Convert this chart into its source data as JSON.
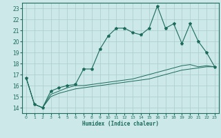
{
  "xlabel": "Humidex (Indice chaleur)",
  "ylabel": "",
  "xlim": [
    -0.5,
    23.5
  ],
  "ylim": [
    13.5,
    23.5
  ],
  "yticks": [
    14,
    15,
    16,
    17,
    18,
    19,
    20,
    21,
    22,
    23
  ],
  "xticks": [
    0,
    1,
    2,
    3,
    4,
    5,
    6,
    7,
    8,
    9,
    10,
    11,
    12,
    13,
    14,
    15,
    16,
    17,
    18,
    19,
    20,
    21,
    22,
    23
  ],
  "bg_color": "#cce8e8",
  "grid_color": "#aacccc",
  "line_color": "#1a6b5a",
  "line1_y": [
    16.7,
    14.3,
    14.0,
    15.5,
    15.8,
    16.0,
    16.1,
    17.5,
    17.5,
    19.3,
    20.5,
    21.2,
    21.2,
    20.8,
    20.6,
    21.2,
    23.2,
    21.2,
    21.6,
    19.8,
    21.6,
    20.0,
    19.0,
    17.7
  ],
  "line2_y": [
    16.7,
    14.3,
    14.0,
    15.2,
    15.5,
    15.8,
    16.0,
    16.0,
    16.1,
    16.2,
    16.3,
    16.4,
    16.5,
    16.6,
    16.8,
    17.0,
    17.2,
    17.4,
    17.6,
    17.8,
    17.9,
    17.7,
    17.8,
    17.7
  ],
  "line3_y": [
    16.7,
    14.3,
    14.0,
    15.0,
    15.3,
    15.5,
    15.7,
    15.8,
    15.9,
    16.0,
    16.1,
    16.2,
    16.3,
    16.4,
    16.5,
    16.6,
    16.8,
    17.0,
    17.2,
    17.4,
    17.5,
    17.6,
    17.7,
    17.7
  ]
}
